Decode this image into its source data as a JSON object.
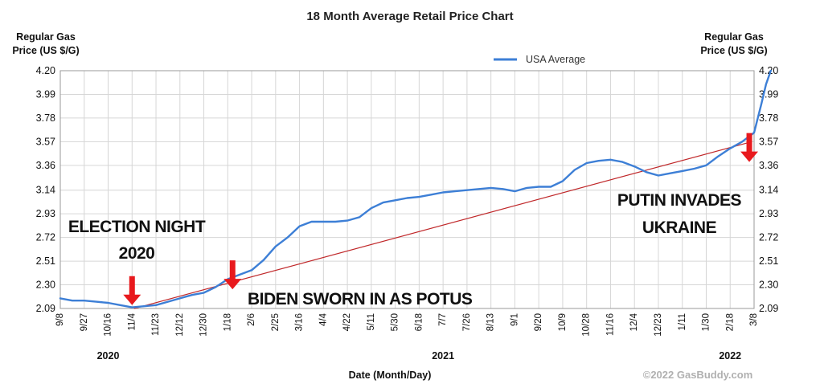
{
  "chart_data": {
    "type": "line",
    "title": "18 Month Average Retail Price Chart",
    "ylabel_left": [
      "Regular Gas",
      "Price (US $/G)"
    ],
    "ylabel_right": [
      "Regular Gas",
      "Price (US $/G)"
    ],
    "xlabel": "Date (Month/Day)",
    "ylim": [
      2.09,
      4.2
    ],
    "yticks": [
      "4.20",
      "3.99",
      "3.78",
      "3.57",
      "3.36",
      "3.14",
      "2.93",
      "2.72",
      "2.51",
      "2.30",
      "2.09"
    ],
    "ytick_values": [
      4.2,
      3.99,
      3.78,
      3.57,
      3.36,
      3.14,
      2.93,
      2.72,
      2.51,
      2.3,
      2.09
    ],
    "xticks": [
      "9/8",
      "9/27",
      "10/16",
      "11/4",
      "11/23",
      "12/12",
      "12/30",
      "1/18",
      "2/6",
      "2/25",
      "3/16",
      "4/4",
      "4/22",
      "5/11",
      "5/30",
      "6/18",
      "7/7",
      "7/26",
      "8/13",
      "9/1",
      "9/20",
      "10/9",
      "10/28",
      "11/16",
      "12/4",
      "12/23",
      "1/11",
      "1/30",
      "2/18",
      "3/8"
    ],
    "years": [
      {
        "label": "2020",
        "at_tick": 2
      },
      {
        "label": "2021",
        "at_tick": 16
      },
      {
        "label": "2022",
        "at_tick": 28
      }
    ],
    "grid": true,
    "legend": {
      "position": "top-right",
      "entries": [
        "USA Average"
      ]
    },
    "series": [
      {
        "name": "USA Average",
        "color": "#3d7fd6",
        "points": [
          [
            0,
            2.18
          ],
          [
            0.5,
            2.16
          ],
          [
            1,
            2.16
          ],
          [
            1.5,
            2.15
          ],
          [
            2,
            2.14
          ],
          [
            2.5,
            2.12
          ],
          [
            3,
            2.1
          ],
          [
            3.5,
            2.11
          ],
          [
            4,
            2.12
          ],
          [
            4.5,
            2.15
          ],
          [
            5,
            2.18
          ],
          [
            5.5,
            2.21
          ],
          [
            6,
            2.23
          ],
          [
            6.5,
            2.28
          ],
          [
            7,
            2.35
          ],
          [
            7.5,
            2.39
          ],
          [
            8,
            2.43
          ],
          [
            8.5,
            2.52
          ],
          [
            9,
            2.64
          ],
          [
            9.5,
            2.72
          ],
          [
            10,
            2.82
          ],
          [
            10.5,
            2.86
          ],
          [
            11,
            2.86
          ],
          [
            11.5,
            2.86
          ],
          [
            12,
            2.87
          ],
          [
            12.5,
            2.9
          ],
          [
            13,
            2.98
          ],
          [
            13.5,
            3.03
          ],
          [
            14,
            3.05
          ],
          [
            14.5,
            3.07
          ],
          [
            15,
            3.08
          ],
          [
            15.5,
            3.1
          ],
          [
            16,
            3.12
          ],
          [
            16.5,
            3.13
          ],
          [
            17,
            3.14
          ],
          [
            17.5,
            3.15
          ],
          [
            18,
            3.16
          ],
          [
            18.5,
            3.15
          ],
          [
            19,
            3.13
          ],
          [
            19.5,
            3.16
          ],
          [
            20,
            3.17
          ],
          [
            20.5,
            3.17
          ],
          [
            21,
            3.22
          ],
          [
            21.5,
            3.32
          ],
          [
            22,
            3.38
          ],
          [
            22.5,
            3.4
          ],
          [
            23,
            3.41
          ],
          [
            23.5,
            3.39
          ],
          [
            24,
            3.35
          ],
          [
            24.5,
            3.3
          ],
          [
            25,
            3.27
          ],
          [
            25.5,
            3.29
          ],
          [
            26,
            3.31
          ],
          [
            26.5,
            3.33
          ],
          [
            27,
            3.36
          ],
          [
            27.5,
            3.44
          ],
          [
            28,
            3.51
          ],
          [
            28.5,
            3.57
          ],
          [
            29,
            3.65
          ],
          [
            29.3,
            3.9
          ],
          [
            29.5,
            4.08
          ],
          [
            29.7,
            4.2
          ]
        ]
      },
      {
        "name": "trend",
        "color": "#c0282a",
        "points": [
          [
            3.1,
            2.09
          ],
          [
            28.9,
            3.57
          ]
        ]
      }
    ],
    "annotations": [
      {
        "text": [
          "ELECTION NIGHT",
          "2020"
        ],
        "arrow_at": [
          3,
          2.12
        ]
      },
      {
        "text": [
          "BIDEN SWORN IN AS POTUS"
        ],
        "arrow_at": [
          7.2,
          2.26
        ]
      },
      {
        "text": [
          "PUTIN INVADES",
          "UKRAINE"
        ],
        "arrow_at": [
          28.8,
          3.39
        ]
      }
    ],
    "copyright": "©2022 GasBuddy.com"
  }
}
